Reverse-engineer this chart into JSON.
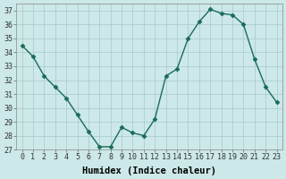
{
  "x": [
    0,
    1,
    2,
    3,
    4,
    5,
    6,
    7,
    8,
    9,
    10,
    11,
    12,
    13,
    14,
    15,
    16,
    17,
    18,
    19,
    20,
    21,
    22,
    23
  ],
  "y": [
    34.5,
    33.7,
    32.3,
    31.5,
    30.7,
    29.5,
    28.3,
    27.2,
    27.2,
    28.6,
    28.2,
    28.0,
    29.2,
    32.3,
    32.8,
    35.0,
    36.2,
    37.1,
    36.8,
    36.7,
    36.0,
    33.5,
    31.5,
    30.4
  ],
  "line_color": "#1a6b5a",
  "marker": "D",
  "marker_size": 2.5,
  "bg_color": "#cce8e8",
  "grid_color": "#aac8c8",
  "xlabel": "Humidex (Indice chaleur)",
  "ylim": [
    27,
    37.5
  ],
  "yticks": [
    27,
    28,
    29,
    30,
    31,
    32,
    33,
    34,
    35,
    36,
    37
  ],
  "xlim": [
    -0.5,
    23.5
  ],
  "xticks": [
    0,
    1,
    2,
    3,
    4,
    5,
    6,
    7,
    8,
    9,
    10,
    11,
    12,
    13,
    14,
    15,
    16,
    17,
    18,
    19,
    20,
    21,
    22,
    23
  ],
  "tick_fontsize": 6.0,
  "xlabel_fontsize": 7.5,
  "linewidth": 1.0
}
